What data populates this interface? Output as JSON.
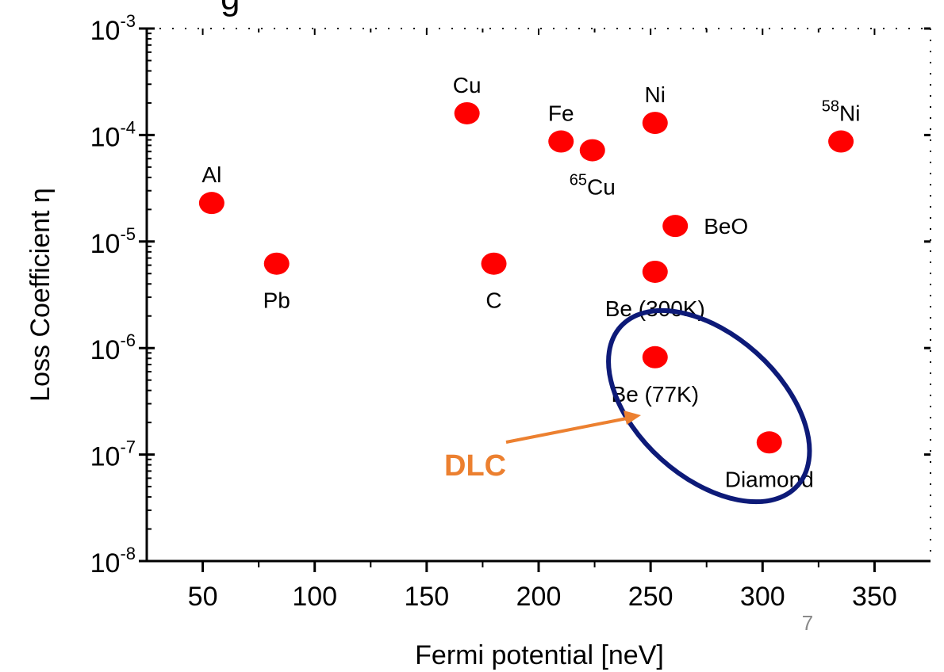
{
  "slide_number": "7",
  "title_fragment": "g",
  "colors": {
    "marker": "#ff0000",
    "ellipse": "#0d1a78",
    "callout": "#ec8030"
  },
  "chart_data": {
    "type": "scatter",
    "xlabel": "Fermi potential [neV]",
    "ylabel": "Loss Coefficient η",
    "xlim": [
      25,
      375
    ],
    "ylim": [
      1e-08,
      0.001
    ],
    "yscale": "log",
    "x_ticks": [
      50,
      100,
      150,
      200,
      250,
      300,
      350
    ],
    "y_ticks": [
      {
        "base": "10",
        "exp": "-8",
        "value": 1e-08
      },
      {
        "base": "10",
        "exp": "-7",
        "value": 1e-07
      },
      {
        "base": "10",
        "exp": "-6",
        "value": 1e-06
      },
      {
        "base": "10",
        "exp": "-5",
        "value": 1e-05
      },
      {
        "base": "10",
        "exp": "-4",
        "value": 0.0001
      },
      {
        "base": "10",
        "exp": "-3",
        "value": 0.001
      }
    ],
    "points": [
      {
        "x": 54,
        "y": 2.3e-05,
        "sup": "",
        "label": "Al",
        "pos": "above"
      },
      {
        "x": 83,
        "y": 6.2e-06,
        "sup": "",
        "label": "Pb",
        "pos": "below"
      },
      {
        "x": 168,
        "y": 0.00016,
        "sup": "",
        "label": "Cu",
        "pos": "above"
      },
      {
        "x": 180,
        "y": 6.2e-06,
        "sup": "",
        "label": "C",
        "pos": "below"
      },
      {
        "x": 210,
        "y": 8.7e-05,
        "sup": "",
        "label": "Fe",
        "pos": "above"
      },
      {
        "x": 224,
        "y": 7.2e-05,
        "sup": "65",
        "label": "Cu",
        "pos": "below"
      },
      {
        "x": 252,
        "y": 0.00013,
        "sup": "",
        "label": "Ni",
        "pos": "above"
      },
      {
        "x": 261,
        "y": 1.4e-05,
        "sup": "",
        "label": "BeO",
        "pos": "right"
      },
      {
        "x": 252,
        "y": 5.2e-06,
        "sup": "",
        "label": "Be (300K)",
        "pos": "below"
      },
      {
        "x": 252,
        "y": 8.2e-07,
        "sup": "",
        "label": "Be (77K)",
        "pos": "below"
      },
      {
        "x": 303,
        "y": 1.3e-07,
        "sup": "",
        "label": "Diamond",
        "pos": "below"
      },
      {
        "x": 335,
        "y": 8.7e-05,
        "sup": "58",
        "label": "Ni",
        "pos": "above"
      }
    ],
    "annotation": {
      "text": "DLC"
    }
  }
}
